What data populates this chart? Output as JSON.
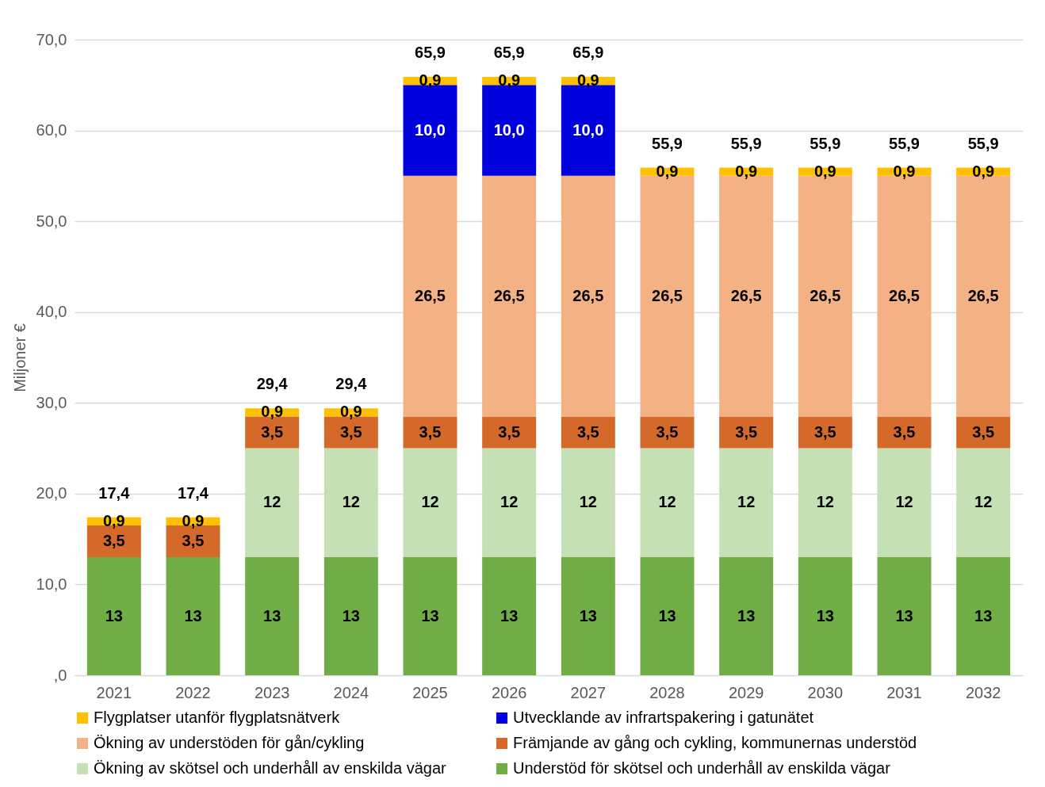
{
  "chart_data": {
    "type": "bar",
    "stacked": true,
    "ylabel": "Miljoner €",
    "categories": [
      "2021",
      "2022",
      "2023",
      "2024",
      "2025",
      "2026",
      "2027",
      "2028",
      "2029",
      "2030",
      "2031",
      "2032"
    ],
    "series": [
      {
        "name": "Understöd för skötsel och underhåll av enskilda vägar",
        "color": "#70ad47",
        "values": [
          13,
          13,
          13,
          13,
          13,
          13,
          13,
          13,
          13,
          13,
          13,
          13
        ],
        "value_labels": [
          "13",
          "13",
          "13",
          "13",
          "13",
          "13",
          "13",
          "13",
          "13",
          "13",
          "13",
          "13"
        ]
      },
      {
        "name": "Ökning av skötsel och underhåll av enskilda vägar",
        "color": "#c5e0b4",
        "values": [
          null,
          null,
          12,
          12,
          12,
          12,
          12,
          12,
          12,
          12,
          12,
          12
        ],
        "value_labels": [
          null,
          null,
          "12",
          "12",
          "12",
          "12",
          "12",
          "12",
          "12",
          "12",
          "12",
          "12"
        ]
      },
      {
        "name": "Främjande av gång och cykling, kommunernas understöd",
        "color": "#d4692a",
        "values": [
          3.5,
          3.5,
          3.5,
          3.5,
          3.5,
          3.5,
          3.5,
          3.5,
          3.5,
          3.5,
          3.5,
          3.5
        ],
        "value_labels": [
          "3,5",
          "3,5",
          "3,5",
          "3,5",
          "3,5",
          "3,5",
          "3,5",
          "3,5",
          "3,5",
          "3,5",
          "3,5",
          "3,5"
        ]
      },
      {
        "name": "Ökning av understöden för gån/cykling",
        "color": "#f4b183",
        "values": [
          null,
          null,
          null,
          null,
          26.5,
          26.5,
          26.5,
          26.5,
          26.5,
          26.5,
          26.5,
          26.5
        ],
        "value_labels": [
          null,
          null,
          null,
          null,
          "26,5",
          "26,5",
          "26,5",
          "26,5",
          "26,5",
          "26,5",
          "26,5",
          "26,5"
        ]
      },
      {
        "name": "Utvecklande av infrartspakering i gatunätet",
        "color": "#0000dd",
        "values": [
          null,
          null,
          null,
          null,
          10,
          10,
          10,
          null,
          null,
          null,
          null,
          null
        ],
        "value_labels": [
          null,
          null,
          null,
          null,
          "10,0",
          "10,0",
          "10,0",
          null,
          null,
          null,
          null,
          null
        ]
      },
      {
        "name": "Flygplatser utanför flygplatsnätverk",
        "color": "#ffc000",
        "values": [
          0.9,
          0.9,
          0.9,
          0.9,
          0.9,
          0.9,
          0.9,
          0.9,
          0.9,
          0.9,
          0.9,
          0.9
        ],
        "value_labels": [
          "0,9",
          "0,9",
          "0,9",
          "0,9",
          "0,9",
          "0,9",
          "0,9",
          "0,9",
          "0,9",
          "0,9",
          "0,9",
          "0,9"
        ]
      }
    ],
    "totals": [
      "17,4",
      "17,4",
      "29,4",
      "29,4",
      "65,9",
      "65,9",
      "65,9",
      "55,9",
      "55,9",
      "55,9",
      "55,9",
      "55,9"
    ],
    "ylim": [
      0,
      70
    ],
    "yticks": [
      {
        "value": 0,
        "label": ",0"
      },
      {
        "value": 10,
        "label": "10,0"
      },
      {
        "value": 20,
        "label": "20,0"
      },
      {
        "value": 30,
        "label": "30,0"
      },
      {
        "value": 40,
        "label": "40,0"
      },
      {
        "value": 50,
        "label": "50,0"
      },
      {
        "value": 60,
        "label": "60,0"
      },
      {
        "value": 70,
        "label": "70,0"
      }
    ],
    "grid": "y",
    "legend": "bottom"
  }
}
